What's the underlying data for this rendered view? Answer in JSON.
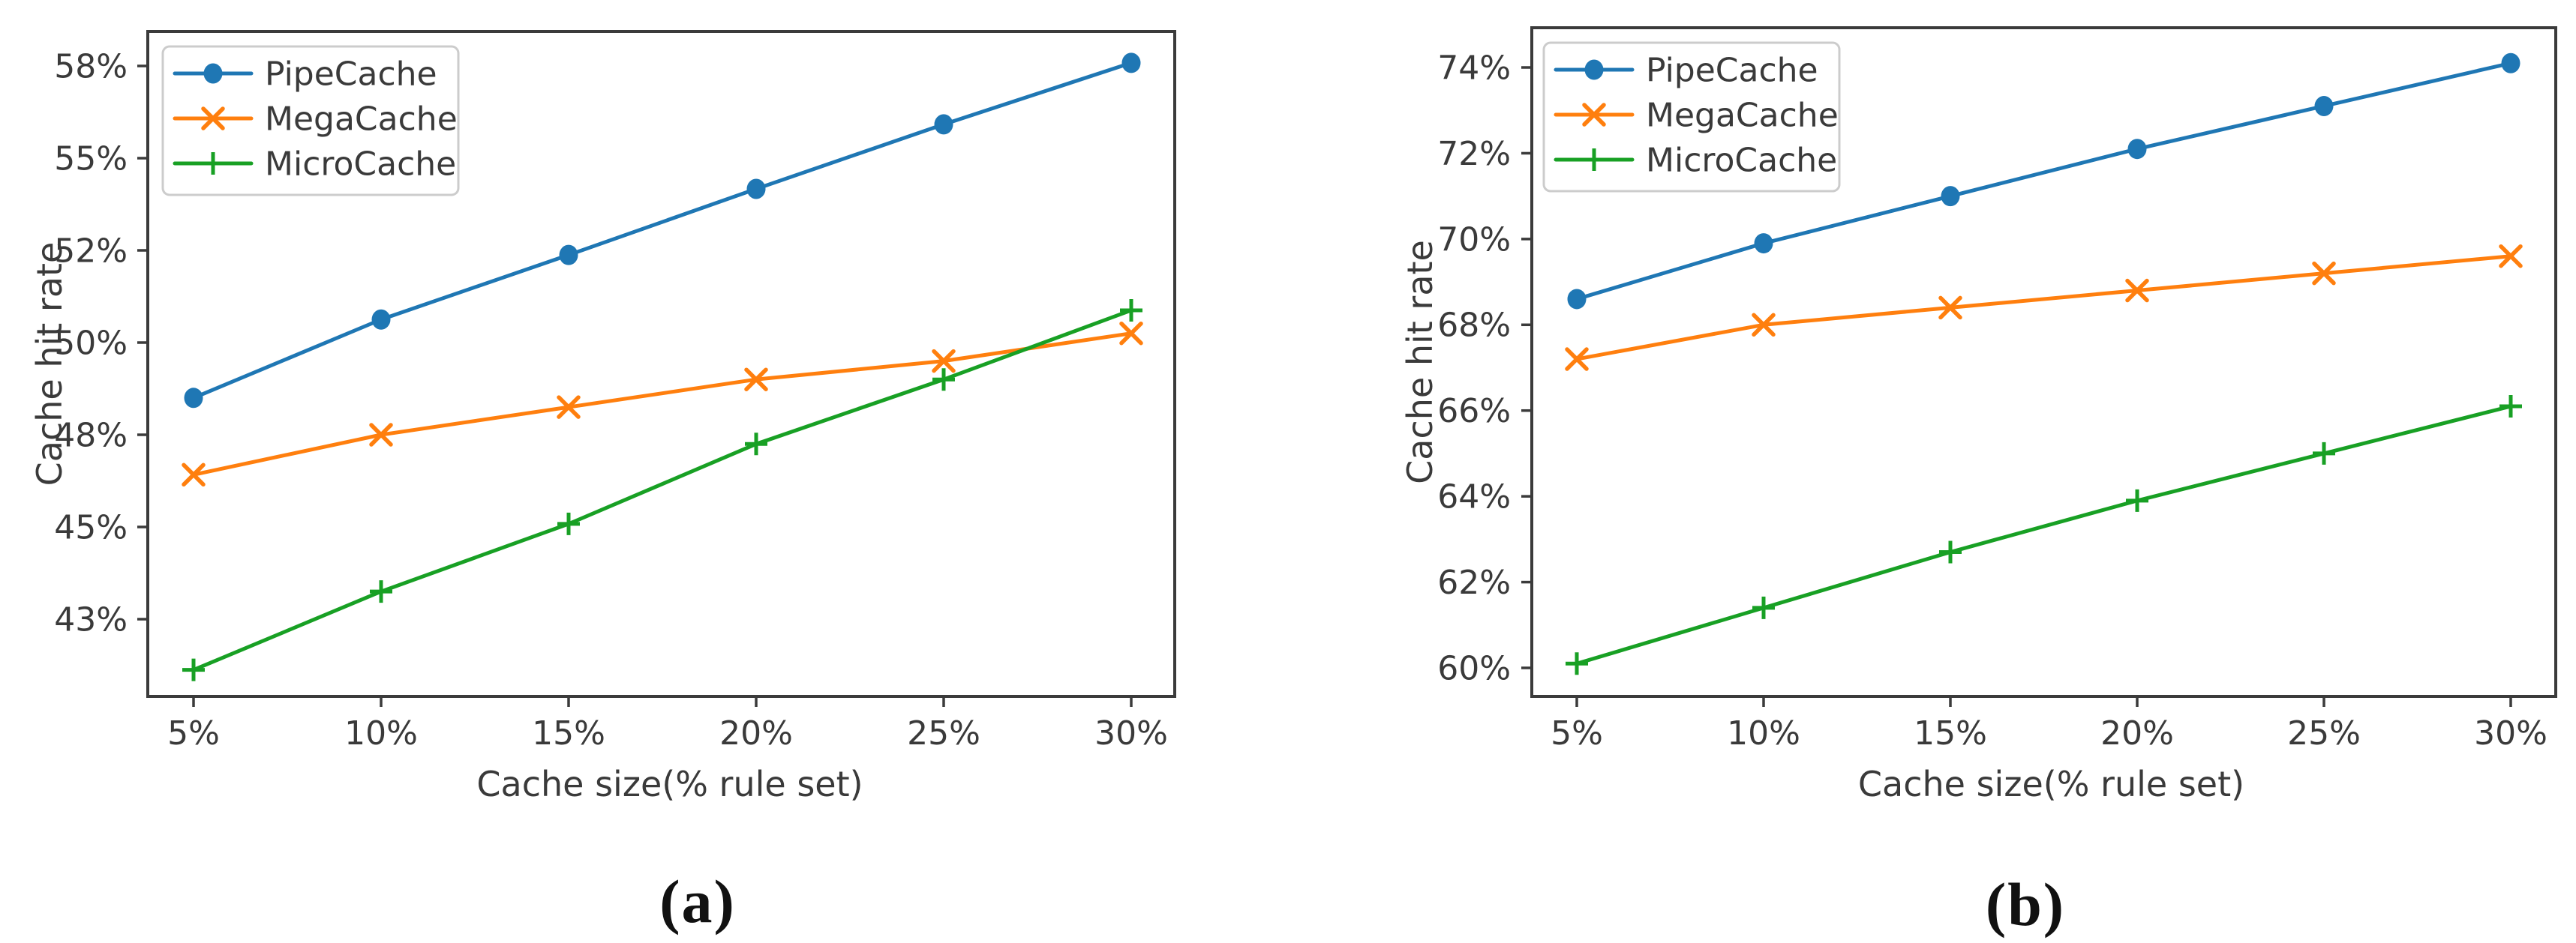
{
  "figure": {
    "background": "#ffffff",
    "text_color": "#3a3a3a",
    "frame_color": "#3b3b3b",
    "legend_border_color": "#cccccc"
  },
  "chart_data": [
    {
      "panel": "a",
      "caption": "(a)",
      "type": "line",
      "title": "",
      "xlabel": "Cache size(% rule set)",
      "ylabel": "Cache hit rate",
      "x_values": [
        5,
        10,
        15,
        20,
        25,
        30
      ],
      "x_tick_labels": [
        "5%",
        "10%",
        "15%",
        "20%",
        "25%",
        "30%"
      ],
      "y_tick_values": [
        58,
        55,
        52,
        50,
        48,
        45,
        43
      ],
      "y_tick_labels": [
        "58%",
        "55%",
        "52%",
        "50%",
        "48%",
        "45%",
        "43%"
      ],
      "y_scale": "uniform tick spacing, piecewise-linear between labeled ticks",
      "grid": false,
      "legend_position": "upper left",
      "legend_entries": [
        "PipeCache",
        "MegaCache",
        "MicroCache"
      ],
      "series": [
        {
          "name": "PipeCache",
          "color": "#1f77b4",
          "marker": "circle",
          "values": [
            48.8,
            50.5,
            51.9,
            54.0,
            56.1,
            58.1
          ]
        },
        {
          "name": "MegaCache",
          "color": "#ff7f0e",
          "marker": "x",
          "values": [
            46.7,
            48.0,
            48.6,
            49.2,
            49.6,
            50.2
          ]
        },
        {
          "name": "MicroCache",
          "color": "#18a024",
          "marker": "plus",
          "values": [
            41.9,
            43.6,
            45.1,
            47.7,
            49.2,
            50.7
          ]
        }
      ]
    },
    {
      "panel": "b",
      "caption": "(b)",
      "type": "line",
      "title": "",
      "xlabel": "Cache size(% rule set)",
      "ylabel": "Cache hit rate",
      "x_values": [
        5,
        10,
        15,
        20,
        25,
        30
      ],
      "x_tick_labels": [
        "5%",
        "10%",
        "15%",
        "20%",
        "25%",
        "30%"
      ],
      "y_tick_values": [
        74,
        72,
        70,
        68,
        66,
        64,
        62,
        60
      ],
      "y_tick_labels": [
        "74%",
        "72%",
        "70%",
        "68%",
        "66%",
        "64%",
        "62%",
        "60%"
      ],
      "y_scale": "uniform tick spacing, piecewise-linear between labeled ticks",
      "grid": false,
      "legend_position": "upper left",
      "legend_entries": [
        "PipeCache",
        "MegaCache",
        "MicroCache"
      ],
      "series": [
        {
          "name": "PipeCache",
          "color": "#1f77b4",
          "marker": "circle",
          "values": [
            68.6,
            69.9,
            71.0,
            72.1,
            73.1,
            74.1
          ]
        },
        {
          "name": "MegaCache",
          "color": "#ff7f0e",
          "marker": "x",
          "values": [
            67.2,
            68.0,
            68.4,
            68.8,
            69.2,
            69.6
          ]
        },
        {
          "name": "MicroCache",
          "color": "#18a024",
          "marker": "plus",
          "values": [
            60.1,
            61.4,
            62.7,
            63.9,
            65.0,
            66.1
          ]
        }
      ]
    }
  ]
}
